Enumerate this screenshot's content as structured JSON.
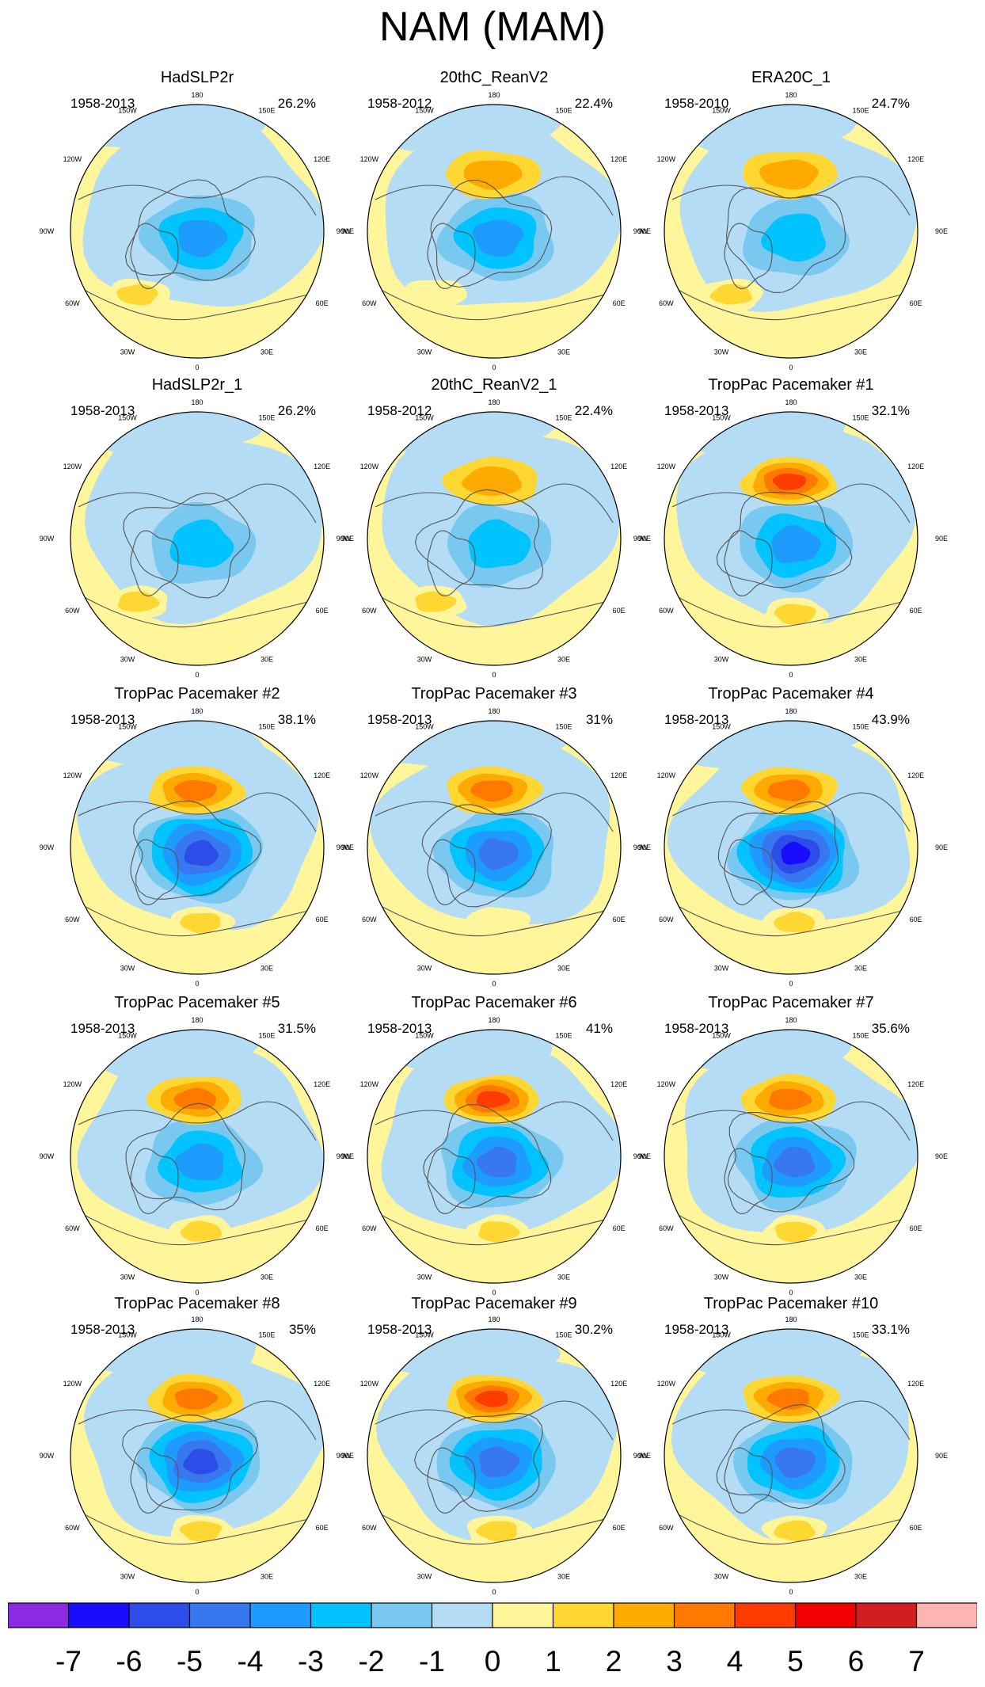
{
  "title": "NAM (MAM)",
  "chart_data": {
    "type": "polar-contour-map-grid",
    "projection": "North polar stereographic",
    "longitude_labels": [
      "180",
      "150E",
      "120E",
      "90E",
      "60E",
      "30E",
      "0",
      "30W",
      "60W",
      "90W",
      "120W",
      "150W"
    ],
    "panels": [
      {
        "title": "HadSLP2r",
        "period": "1958-2013",
        "variance": "26.2%",
        "center_min": -4,
        "pacific_max": 0,
        "atlantic_max": 2
      },
      {
        "title": "20thC_ReanV2",
        "period": "1958-2012",
        "variance": "22.4%",
        "center_min": -4,
        "pacific_max": 2,
        "atlantic_max": 1
      },
      {
        "title": "ERA20C_1",
        "period": "1958-2010",
        "variance": "24.7%",
        "center_min": -3,
        "pacific_max": 2,
        "atlantic_max": 2
      },
      {
        "title": "HadSLP2r_1",
        "period": "1958-2013",
        "variance": "26.2%",
        "center_min": -3,
        "pacific_max": 0,
        "atlantic_max": 2
      },
      {
        "title": "20thC_ReanV2_1",
        "period": "1958-2012",
        "variance": "22.4%",
        "center_min": -3,
        "pacific_max": 2,
        "atlantic_max": 2
      },
      {
        "title": "TropPac Pacemaker #1",
        "period": "1958-2013",
        "variance": "32.1%",
        "center_min": -4,
        "pacific_max": 4,
        "atlantic_max": 2
      },
      {
        "title": "TropPac Pacemaker #2",
        "period": "1958-2013",
        "variance": "38.1%",
        "center_min": -6,
        "pacific_max": 3,
        "atlantic_max": 2
      },
      {
        "title": "TropPac Pacemaker #3",
        "period": "1958-2013",
        "variance": "31%",
        "center_min": -5,
        "pacific_max": 3,
        "atlantic_max": 1
      },
      {
        "title": "TropPac Pacemaker #4",
        "period": "1958-2013",
        "variance": "43.9%",
        "center_min": -7,
        "pacific_max": 3,
        "atlantic_max": 2
      },
      {
        "title": "TropPac Pacemaker #5",
        "period": "1958-2013",
        "variance": "31.5%",
        "center_min": -4,
        "pacific_max": 3,
        "atlantic_max": 2
      },
      {
        "title": "TropPac Pacemaker #6",
        "period": "1958-2013",
        "variance": "41%",
        "center_min": -5,
        "pacific_max": 4,
        "atlantic_max": 2
      },
      {
        "title": "TropPac Pacemaker #7",
        "period": "1958-2013",
        "variance": "35.6%",
        "center_min": -5,
        "pacific_max": 3,
        "atlantic_max": 2
      },
      {
        "title": "TropPac Pacemaker #8",
        "period": "1958-2013",
        "variance": "35%",
        "center_min": -6,
        "pacific_max": 3,
        "atlantic_max": 2
      },
      {
        "title": "TropPac Pacemaker #9",
        "period": "1958-2013",
        "variance": "30.2%",
        "center_min": -5,
        "pacific_max": 4,
        "atlantic_max": 2
      },
      {
        "title": "TropPac Pacemaker #10",
        "period": "1958-2013",
        "variance": "33.1%",
        "center_min": -5,
        "pacific_max": 3,
        "atlantic_max": 2
      }
    ],
    "colorbar": {
      "labels": [
        "-7",
        "-6",
        "-5",
        "-4",
        "-3",
        "-2",
        "-1",
        "0",
        "1",
        "2",
        "3",
        "4",
        "5",
        "6",
        "7"
      ],
      "bins": [
        {
          "lo": -8,
          "hi": -7,
          "color": "#8a2be2"
        },
        {
          "lo": -7,
          "hi": -6,
          "color": "#1a0dff"
        },
        {
          "lo": -6,
          "hi": -5,
          "color": "#2d4de8"
        },
        {
          "lo": -5,
          "hi": -4,
          "color": "#3778f0"
        },
        {
          "lo": -4,
          "hi": -3,
          "color": "#1e9bff"
        },
        {
          "lo": -3,
          "hi": -2,
          "color": "#00c3ff"
        },
        {
          "lo": -2,
          "hi": -1,
          "color": "#78c8f0"
        },
        {
          "lo": -1,
          "hi": 0,
          "color": "#b4dcf5"
        },
        {
          "lo": 0,
          "hi": 1,
          "color": "#fff59b"
        },
        {
          "lo": 1,
          "hi": 2,
          "color": "#ffd732"
        },
        {
          "lo": 2,
          "hi": 3,
          "color": "#ffaa00"
        },
        {
          "lo": 3,
          "hi": 4,
          "color": "#ff7800"
        },
        {
          "lo": 4,
          "hi": 5,
          "color": "#ff3c00"
        },
        {
          "lo": 5,
          "hi": 6,
          "color": "#f00000"
        },
        {
          "lo": 6,
          "hi": 7,
          "color": "#d21e1e"
        },
        {
          "lo": 7,
          "hi": 8,
          "color": "#ffb4b4"
        }
      ]
    }
  }
}
